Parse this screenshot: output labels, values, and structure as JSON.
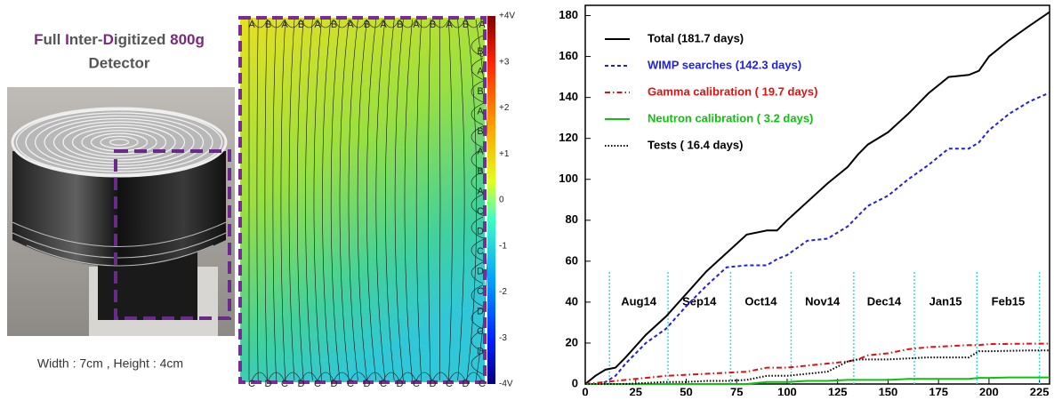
{
  "photo_panel": {
    "title_parts": [
      "F",
      "ull ",
      "I",
      "nter-",
      "D",
      "igitized ",
      "800g"
    ],
    "subtitle": "Detector",
    "caption": "Width : 7cm , Height : 4cm"
  },
  "field_map": {
    "top_electrodes": [
      "A",
      "B",
      "A",
      "B",
      "A",
      "B",
      "A",
      "B",
      "A",
      "B",
      "A",
      "B",
      "A",
      "B",
      "A"
    ],
    "right_electrodes": [
      "B",
      "A",
      "B",
      "A",
      "B",
      "A",
      "B",
      "A",
      "C",
      "D",
      "C",
      "D",
      "C",
      "D",
      "C",
      "D"
    ],
    "bottom_electrodes": [
      "C",
      "D",
      "C",
      "D",
      "C",
      "D",
      "C",
      "D",
      "C",
      "D",
      "C",
      "D",
      "C",
      "D",
      "C"
    ],
    "colorbar_labels": [
      "+4V",
      "+3",
      "+2",
      "+1",
      "0",
      "-1",
      "-2",
      "-3",
      "-4V"
    ]
  },
  "chart_data": {
    "type": "line",
    "x": [
      0,
      5,
      10,
      15,
      20,
      30,
      40,
      50,
      60,
      70,
      80,
      90,
      95,
      100,
      110,
      120,
      130,
      135,
      140,
      150,
      160,
      170,
      180,
      190,
      195,
      200,
      210,
      220,
      230
    ],
    "series": [
      {
        "name": "Total (181.7 days)",
        "color": "#000000",
        "style": "solid",
        "values": [
          0,
          4,
          7,
          8,
          13,
          24,
          33,
          44,
          55,
          64,
          73,
          75,
          75,
          80,
          89,
          98,
          106,
          112,
          117,
          123,
          132,
          142,
          150,
          151,
          153,
          160,
          168,
          175,
          181.7
        ]
      },
      {
        "name": "WIMP searches (142.3 days)",
        "color": "#1f1fe0",
        "style": "dashed",
        "values": [
          0,
          0,
          1,
          4,
          10,
          20,
          27,
          38,
          48,
          57,
          58,
          58,
          61,
          63,
          70,
          71,
          77,
          82,
          87,
          92,
          100,
          107,
          115,
          115,
          118,
          124,
          132,
          138,
          142.3
        ]
      },
      {
        "name": "Gamma calibration ( 19.7 days)",
        "color": "#e01010",
        "style": "dashdot",
        "values": [
          0,
          0.5,
          1,
          1.5,
          2,
          3,
          4,
          4.5,
          5,
          5.5,
          6,
          8,
          8,
          8,
          9,
          10,
          11,
          12,
          14,
          15,
          17,
          18,
          18.5,
          19,
          19,
          19.5,
          19.6,
          19.7,
          19.7
        ]
      },
      {
        "name": "Neutron calibration (  3.2 days)",
        "color": "#10c010",
        "style": "solid",
        "values": [
          0,
          0,
          0,
          0,
          0,
          0,
          0,
          0,
          0,
          0,
          0,
          1,
          1,
          1,
          1.5,
          1.5,
          2,
          2,
          2,
          2,
          2.5,
          2.5,
          2.5,
          2.5,
          3,
          3,
          3.2,
          3.2,
          3.2
        ]
      },
      {
        "name": "Tests ( 16.4 days)",
        "color": "#000000",
        "style": "dotted",
        "values": [
          0,
          0,
          0,
          0,
          0,
          0.5,
          1,
          1,
          1.5,
          1.5,
          2,
          4,
          4,
          4,
          5,
          6,
          11,
          12,
          12,
          12,
          12.5,
          13,
          13,
          13,
          16,
          16,
          16.2,
          16.4,
          16.4
        ]
      }
    ],
    "periods": [
      "Aug14",
      "Sep14",
      "Oct14",
      "Nov14",
      "Dec14",
      "Jan15",
      "Feb15"
    ],
    "period_edges": [
      12,
      41,
      72,
      102,
      133,
      163,
      194,
      225
    ],
    "xlim": [
      0,
      230
    ],
    "xticks": [
      0,
      25,
      50,
      75,
      100,
      125,
      150,
      175,
      200,
      225
    ],
    "ylim": [
      0,
      185
    ],
    "yticks": [
      0,
      20,
      40,
      60,
      80,
      100,
      120,
      140,
      160,
      180
    ],
    "legend": "upper-left"
  }
}
